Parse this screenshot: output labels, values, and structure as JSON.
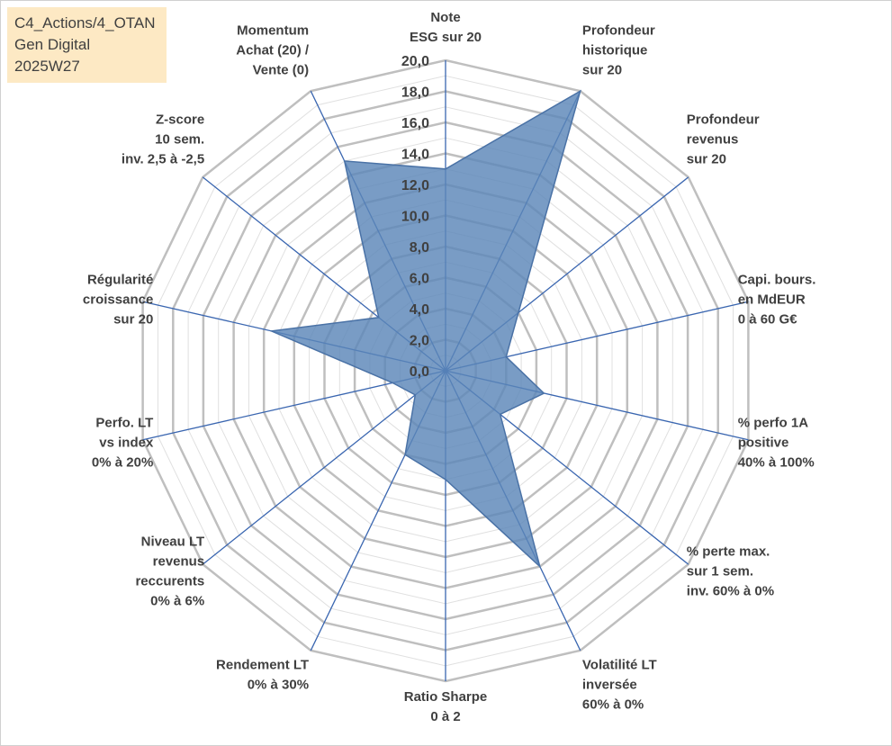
{
  "header": {
    "lines": [
      "C4_Actions/4_OTAN",
      "Gen Digital",
      "2025W27"
    ]
  },
  "colors": {
    "fill": "#5b86b8",
    "stroke": "#4a72a6",
    "spoke": "#3a66b0",
    "grid_major": "#bfbfbf",
    "grid_minor": "#e0e0e0"
  },
  "chart_data": {
    "type": "radar",
    "rmin": 0,
    "rmax": 20,
    "major_step": 2,
    "minor_step": 1,
    "tick_labels": [
      "0,0",
      "2,0",
      "4,0",
      "6,0",
      "8,0",
      "10,0",
      "12,0",
      "14,0",
      "16,0",
      "18,0",
      "20,0"
    ],
    "axes": [
      {
        "label": [
          "Note",
          "ESG sur 20"
        ],
        "value": 13.0
      },
      {
        "label": [
          "Profondeur",
          "historique",
          "sur 20"
        ],
        "value": 20.0
      },
      {
        "label": [
          "Profondeur",
          "revenus",
          "sur 20"
        ],
        "value": 6.0
      },
      {
        "label": [
          "Capi. bours.",
          "en MdEUR",
          "0 à 60 G€"
        ],
        "value": 4.0
      },
      {
        "label": [
          "% perfo 1A",
          "positive",
          "40% à 100%"
        ],
        "value": 6.5
      },
      {
        "label": [
          "% perte max.",
          "sur 1 sem.",
          "inv. 60% à 0%"
        ],
        "value": 4.5
      },
      {
        "label": [
          "Volatilité LT",
          "inversée",
          "60% à 0%"
        ],
        "value": 14.0
      },
      {
        "label": [
          "Ratio Sharpe",
          "0 à 2"
        ],
        "value": 7.0
      },
      {
        "label": [
          "Rendement LT",
          "0% à 30%"
        ],
        "value": 6.0
      },
      {
        "label": [
          "Niveau LT",
          "revenus",
          "reccurents",
          "0% à 6%"
        ],
        "value": 2.5
      },
      {
        "label": [
          "Perfo. LT",
          "vs index",
          "0% à 20%"
        ],
        "value": 3.5
      },
      {
        "label": [
          "Régularité",
          "croissance",
          "sur 20"
        ],
        "value": 11.5
      },
      {
        "label": [
          "Z-score",
          "10 sem.",
          "inv. 2,5 à -2,5"
        ],
        "value": 5.5
      },
      {
        "label": [
          "Momentum",
          "Achat (20) /",
          "Vente (0)"
        ],
        "value": 15.0
      }
    ]
  }
}
